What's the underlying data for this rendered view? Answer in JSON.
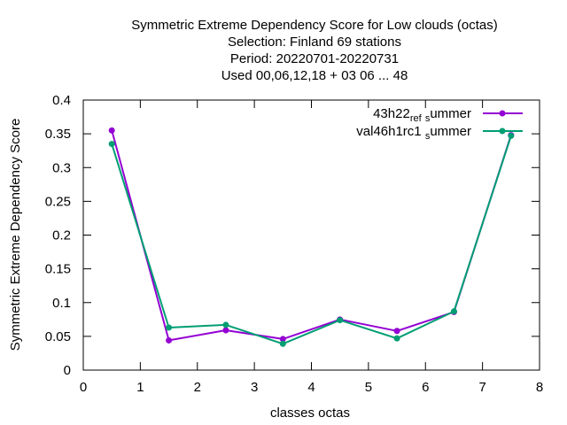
{
  "chart_data": {
    "type": "line",
    "title_lines": [
      "Symmetric Extreme Dependency Score  for Low clouds (octas)",
      "Selection: Finland     69 stations",
      "Period: 20220701-20220731",
      "Used  00,06,12,18  + 03 06 ... 48"
    ],
    "xlabel": "classes octas",
    "ylabel": "Symmetric Extreme Dependency Score",
    "xlim": [
      0,
      8
    ],
    "ylim": [
      0,
      0.4
    ],
    "xticks": [
      0,
      1,
      2,
      3,
      4,
      5,
      6,
      7,
      8
    ],
    "xtick_labels": [
      "0",
      "1",
      "2",
      "3",
      "4",
      "5",
      "6",
      "7",
      "8"
    ],
    "yticks": [
      0,
      0.05,
      0.1,
      0.15,
      0.2,
      0.25,
      0.3,
      0.35,
      0.4
    ],
    "ytick_labels": [
      "0",
      "0.05",
      "0.1",
      "0.15",
      "0.2",
      "0.25",
      "0.3",
      "0.35",
      "0.4"
    ],
    "legend_position": "top-right",
    "series": [
      {
        "name": "43h22_ref_summer",
        "legend_main": "43h22",
        "legend_sub1": "ref",
        "legend_sub2": "ummer",
        "color": "#9400d3",
        "x": [
          0.5,
          1.5,
          2.5,
          3.5,
          4.5,
          5.5,
          6.5,
          7.5
        ],
        "values": [
          0.355,
          0.044,
          0.059,
          0.046,
          0.075,
          0.058,
          0.086,
          0.348
        ]
      },
      {
        "name": "val46h1rc1_summer",
        "legend_main": "val46h1rc1",
        "legend_sub1": "",
        "legend_sub2": "ummer",
        "color": "#009e73",
        "x": [
          0.5,
          1.5,
          2.5,
          3.5,
          4.5,
          5.5,
          6.5,
          7.5
        ],
        "values": [
          0.335,
          0.063,
          0.067,
          0.039,
          0.074,
          0.047,
          0.087,
          0.347
        ]
      }
    ]
  }
}
